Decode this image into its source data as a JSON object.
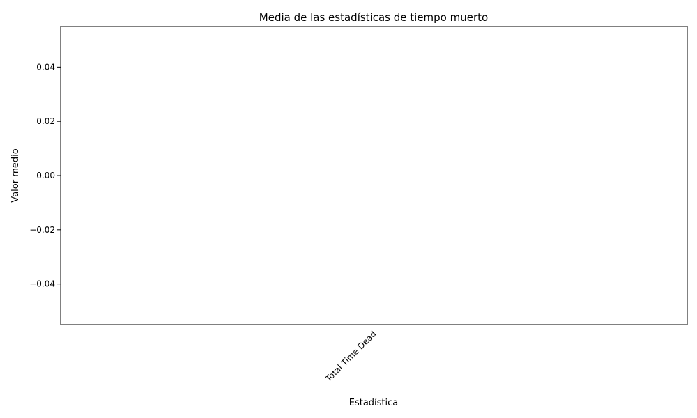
{
  "chart_data": {
    "type": "bar",
    "title": "Media de las estadísticas de tiempo muerto",
    "xlabel": "Estadística",
    "ylabel": "Valor medio",
    "categories": [
      "Total Time Dead"
    ],
    "values": [
      0
    ],
    "ylim": [
      -0.055,
      0.055
    ],
    "yticks": [
      0.04,
      0.02,
      0.0,
      -0.02,
      -0.04
    ],
    "ytick_labels": [
      "0.04",
      "0.02",
      "0.00",
      "−0.02",
      "−0.04"
    ],
    "xtick_rotation": -45,
    "grid": false,
    "legend": "none",
    "bar_color": "#1f77b4"
  }
}
